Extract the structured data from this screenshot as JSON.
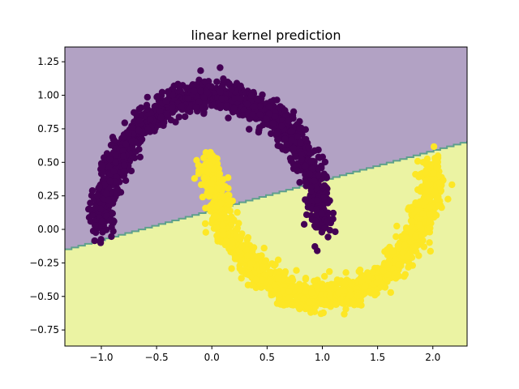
{
  "chart_data": {
    "type": "scatter",
    "title": "linear kernel prediction",
    "xlabel": "",
    "ylabel": "",
    "xlim": [
      -1.33,
      2.31
    ],
    "ylim": [
      -0.87,
      1.36
    ],
    "x_ticks": [
      -1.0,
      -0.5,
      0.0,
      0.5,
      1.0,
      1.5,
      2.0
    ],
    "x_tick_labels": [
      "−1.0",
      "−0.5",
      "0.0",
      "0.5",
      "1.0",
      "1.5",
      "2.0"
    ],
    "y_ticks": [
      -0.75,
      -0.5,
      -0.25,
      0.0,
      0.25,
      0.5,
      0.75,
      1.0,
      1.25
    ],
    "y_tick_labels": [
      "−0.75",
      "−0.50",
      "−0.25",
      "0.00",
      "0.25",
      "0.50",
      "0.75",
      "1.00",
      "1.25"
    ],
    "grid": false,
    "legend": "none",
    "decision_boundary": {
      "description": "linear decision boundary y = 0.222*x + 0.14",
      "slope": 0.222,
      "intercept": 0.14,
      "region_above_class": 0,
      "region_below_class": 1
    },
    "series": [
      {
        "class": 0,
        "shape": "upper half-moon",
        "center": [
          0.0,
          0.0
        ],
        "radius": 1.0,
        "angle_range_deg": [
          0,
          180
        ],
        "noise": 0.1,
        "x_range": [
          -1.15,
          1.1
        ],
        "y_range": [
          -0.1,
          1.15
        ]
      },
      {
        "class": 1,
        "shape": "lower half-moon",
        "center": [
          1.0,
          0.5
        ],
        "radius": 1.0,
        "angle_range_deg": [
          180,
          360
        ],
        "noise": 0.1,
        "x_range": [
          -0.1,
          2.1
        ],
        "y_range": [
          -0.65,
          0.6
        ]
      }
    ],
    "colors": {
      "class_0_point": "#440154",
      "class_1_point": "#fde725",
      "region_0": "#b2a2c4",
      "region_1": "#ebf3a3",
      "boundary": "#5ea08c"
    }
  }
}
